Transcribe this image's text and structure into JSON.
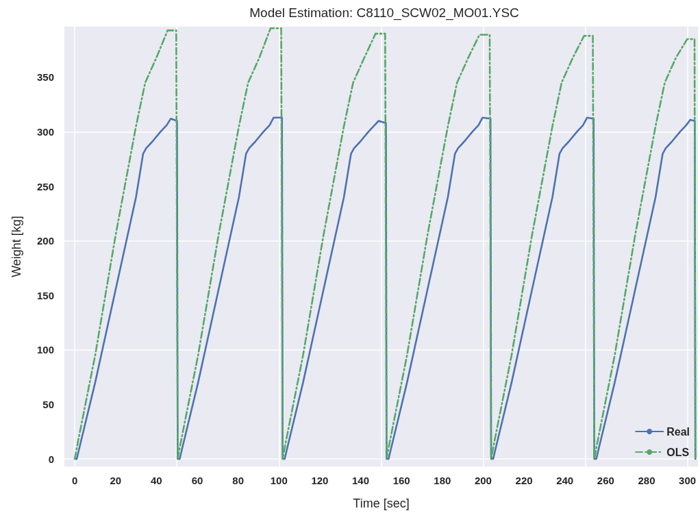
{
  "chart_data": {
    "type": "line",
    "title": "Model Estimation: C8110_SCW02_MO01.YSC",
    "xlabel": "Time [sec]",
    "ylabel": "Weight [kg]",
    "xlim": [
      -5.4,
      305.5
    ],
    "ylim": [
      -7.5,
      397
    ],
    "xticks": [
      0,
      20,
      40,
      60,
      80,
      100,
      120,
      140,
      160,
      180,
      200,
      220,
      240,
      260,
      280,
      300
    ],
    "yticks": [
      0,
      50,
      100,
      150,
      200,
      250,
      300,
      350
    ],
    "grid": true,
    "legend": "bottom right",
    "marker": "none",
    "series": [
      {
        "name": "Real",
        "color": "#4c72b0",
        "line_style": "solid",
        "x": [
          0,
          1,
          2,
          10,
          20,
          30,
          33.5,
          35,
          38,
          42,
          45,
          47,
          50.1,
          50.4,
          51.4,
          52.4,
          60.4,
          70.4,
          80.4,
          83.9,
          85.4,
          88.4,
          92.4,
          95.4,
          97.4,
          101.5,
          101.8,
          102.8,
          103.8,
          111.8,
          121.8,
          131.8,
          135.3,
          136.8,
          139.8,
          143.8,
          146.8,
          148.8,
          152.4,
          152.7,
          153.7,
          154.7,
          162.7,
          172.7,
          182.7,
          186.2,
          187.7,
          190.7,
          194.7,
          197.7,
          199.7,
          203.6,
          203.9,
          204.9,
          205.9,
          213.9,
          223.9,
          233.9,
          237.4,
          238.9,
          241.9,
          245.9,
          248.9,
          250.9,
          254.1,
          254.4,
          255.4,
          256.4,
          264.4,
          274.4,
          284.4,
          287.9,
          289.4,
          292.4,
          296.4,
          299.4,
          301.4,
          303.6,
          303.9
        ],
        "values": [
          0,
          0,
          8,
          70,
          155,
          240,
          280,
          285,
          291,
          300,
          306,
          312,
          310,
          0,
          0,
          8,
          70,
          155,
          240,
          280,
          285,
          291,
          300,
          306,
          313,
          313,
          0,
          0,
          8,
          70,
          155,
          240,
          280,
          285,
          291,
          300,
          306,
          310,
          308,
          0,
          0,
          8,
          70,
          155,
          240,
          280,
          285,
          291,
          300,
          306,
          313,
          312,
          0,
          0,
          8,
          70,
          155,
          240,
          280,
          285,
          291,
          300,
          306,
          313,
          312,
          0,
          0,
          8,
          70,
          155,
          240,
          280,
          285,
          291,
          300,
          306,
          311,
          310,
          0
        ]
      },
      {
        "name": "OLS",
        "color": "#55a868",
        "line_style": "dashdot",
        "x": [
          0,
          1.5,
          10,
          20,
          30,
          34.5,
          40,
          45.5,
          49.7,
          50.4,
          51.9,
          60.4,
          70.4,
          80.4,
          84.9,
          90.4,
          95.9,
          101.1,
          101.8,
          103.3,
          111.8,
          121.8,
          131.8,
          136.3,
          141.8,
          147.3,
          152.0,
          152.7,
          154.2,
          162.7,
          172.7,
          182.7,
          187.2,
          192.7,
          198.2,
          203.2,
          203.9,
          205.4,
          213.9,
          223.9,
          233.9,
          238.4,
          243.9,
          249.4,
          253.7,
          254.4,
          255.9,
          264.4,
          274.4,
          284.4,
          288.9,
          294.4,
          299.9,
          303.5,
          303.9
        ],
        "values": [
          0,
          15,
          95,
          205,
          305,
          345,
          368,
          393,
          393,
          0,
          15,
          95,
          205,
          305,
          345,
          368,
          395,
          395,
          0,
          15,
          95,
          205,
          305,
          345,
          368,
          390,
          390,
          0,
          15,
          95,
          205,
          305,
          345,
          368,
          389,
          389,
          0,
          15,
          95,
          205,
          305,
          345,
          368,
          388,
          388,
          0,
          15,
          95,
          205,
          305,
          345,
          368,
          385,
          385,
          0
        ]
      }
    ]
  }
}
